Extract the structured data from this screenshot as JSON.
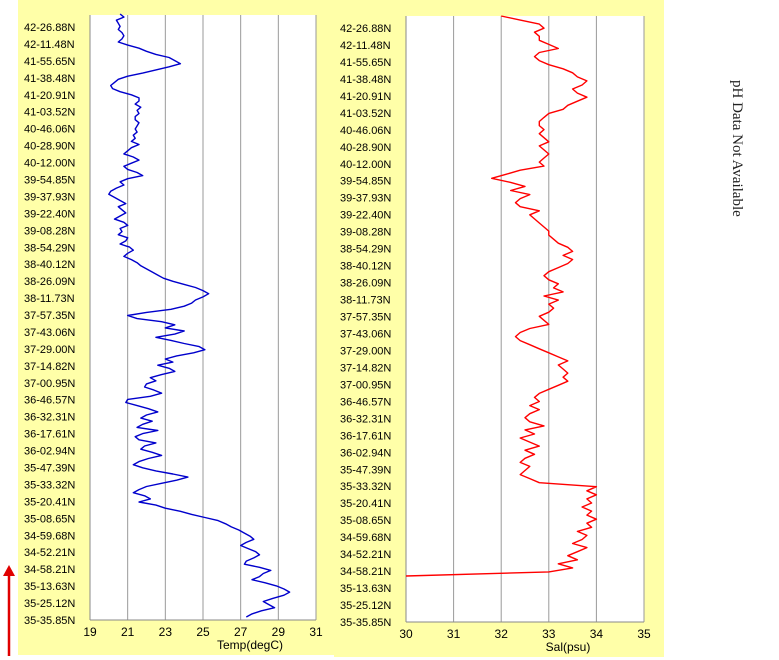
{
  "latitudes": [
    "42-26.88N",
    "42-11.48N",
    "41-55.65N",
    "41-38.48N",
    "41-20.91N",
    "41-03.52N",
    "40-46.06N",
    "40-28.90N",
    "40-12.00N",
    "39-54.85N",
    "39-37.93N",
    "39-22.40N",
    "39-08.28N",
    "38-54.29N",
    "38-40.12N",
    "38-26.09N",
    "38-11.73N",
    "37-57.35N",
    "37-43.06N",
    "37-29.00N",
    "37-14.82N",
    "37-00.95N",
    "36-46.57N",
    "36-32.31N",
    "36-17.61N",
    "36-02.94N",
    "35-47.39N",
    "35-33.32N",
    "35-20.41N",
    "35-08.65N",
    "34-59.68N",
    "34-52.21N",
    "34-58.21N",
    "35-13.63N",
    "35-25.12N",
    "35-35.85N"
  ],
  "side_note": "pH Data Not Available",
  "colors": {
    "temp": "#0000cc",
    "sal": "#ff0000",
    "panel": "#ffffa8",
    "arrow": "#e00000"
  },
  "chart_data": [
    {
      "type": "line",
      "xlabel": "Temp(degC)",
      "xlim": [
        19,
        31
      ],
      "xticks": [
        19,
        21,
        23,
        25,
        27,
        29,
        31
      ],
      "grid": true,
      "series": [
        {
          "values": [
            20.6,
            20.8,
            20.4,
            20.5,
            20.6,
            20.5,
            20.7,
            20.8,
            20.7,
            20.5,
            21.0,
            21.6,
            22.0,
            22.5,
            23.2,
            23.5,
            23.8,
            23.2,
            22.5,
            21.8,
            21.0,
            20.5,
            20.3,
            20.1,
            20.2,
            20.6,
            21.2,
            21.6,
            21.6,
            21.4,
            21.7,
            21.5,
            21.6,
            21.4,
            21.4,
            21.6,
            21.5,
            21.4,
            21.5,
            21.3,
            21.4,
            21.2,
            21.6,
            21.2,
            21.0,
            20.8,
            21.3,
            21.6,
            21.2,
            20.8,
            21.0,
            21.5,
            21.8,
            21.0,
            20.6,
            20.8,
            20.4,
            20.1,
            20.0,
            20.3,
            20.6,
            20.9,
            20.5,
            20.7,
            20.9,
            20.6,
            20.3,
            20.8,
            21.0,
            20.6,
            20.7,
            20.5,
            21.0,
            20.9,
            20.6,
            21.1,
            21.3,
            21.0,
            20.8,
            21.2,
            21.5,
            21.7,
            22.0,
            22.3,
            22.6,
            22.9,
            23.4,
            24.0,
            24.6,
            25.0,
            25.3,
            25.0,
            24.6,
            24.4,
            24.0,
            23.3,
            22.0,
            21.0,
            21.5,
            22.8,
            23.5,
            23.0,
            24.0,
            23.5,
            22.5,
            23.3,
            24.0,
            24.8,
            25.1,
            24.5,
            23.6,
            23.0,
            23.4,
            22.6,
            23.2,
            23.5,
            22.8,
            22.2,
            22.5,
            22.0,
            21.9,
            22.4,
            22.8,
            22.2,
            21.0,
            20.9,
            21.5,
            22.1,
            22.6,
            22.0,
            21.7,
            22.3,
            21.8,
            21.5,
            22.6,
            21.8,
            21.4,
            21.6,
            22.5,
            21.9,
            21.7,
            22.3,
            22.8,
            22.1,
            21.6,
            21.3,
            21.8,
            22.5,
            23.4,
            24.2,
            23.6,
            22.8,
            22.0,
            21.6,
            21.3,
            21.9,
            22.2,
            21.6,
            22.5,
            23.0,
            23.8,
            24.4,
            25.1,
            25.8,
            26.2,
            26.5,
            26.9,
            27.2,
            27.5,
            27.7,
            27.3,
            27.0,
            27.4,
            27.8,
            28.0,
            27.7,
            27.3,
            27.2,
            28.0,
            28.6,
            28.2,
            28.0,
            27.6,
            28.3,
            28.9,
            29.3,
            29.6,
            29.3,
            28.7,
            28.2,
            28.5,
            28.8,
            28.1,
            27.6,
            27.3
          ]
        }
      ]
    },
    {
      "type": "line",
      "xlabel": "Sal(psu)",
      "xlim": [
        30,
        35
      ],
      "xticks": [
        30,
        31,
        32,
        33,
        34,
        35
      ],
      "grid": true,
      "series": [
        {
          "values": [
            32.0,
            32.4,
            32.8,
            32.9,
            32.7,
            32.8,
            32.8,
            33.0,
            33.2,
            32.8,
            32.7,
            32.8,
            33.0,
            33.3,
            33.5,
            33.6,
            33.8,
            33.7,
            33.5,
            33.6,
            33.8,
            33.6,
            33.4,
            33.3,
            33.0,
            32.9,
            32.8,
            32.8,
            32.9,
            32.8,
            32.9,
            33.0,
            32.8,
            32.9,
            33.0,
            32.9,
            32.8,
            32.9,
            32.4,
            32.1,
            31.8,
            32.2,
            32.5,
            32.2,
            32.6,
            32.4,
            32.3,
            32.4,
            32.8,
            32.6,
            32.7,
            32.8,
            32.9,
            33.0,
            33.0,
            33.1,
            33.2,
            33.4,
            33.5,
            33.3,
            33.5,
            33.4,
            33.2,
            33.0,
            32.9,
            33.0,
            33.2,
            33.1,
            33.3,
            32.9,
            33.2,
            33.0,
            33.1,
            33.0,
            32.8,
            32.9,
            33.0,
            32.6,
            32.4,
            32.3,
            32.4,
            32.6,
            32.8,
            33.0,
            33.2,
            33.4,
            33.2,
            33.3,
            33.4,
            33.3,
            33.4,
            33.2,
            33.0,
            32.8,
            32.7,
            32.8,
            32.6,
            32.8,
            32.6,
            32.5,
            32.6,
            32.9,
            32.5,
            32.7,
            32.4,
            32.6,
            32.8,
            32.5,
            32.7,
            32.5,
            32.4,
            32.6,
            32.5,
            32.4,
            32.6,
            32.8,
            34.0,
            33.8,
            34.0,
            33.8,
            33.9,
            33.7,
            33.9,
            33.8,
            34.0,
            33.8,
            33.9,
            33.6,
            33.8,
            33.7,
            33.5,
            33.8,
            33.6,
            33.4,
            33.6,
            33.2,
            33.5,
            33.0,
            30.0
          ]
        }
      ]
    }
  ]
}
